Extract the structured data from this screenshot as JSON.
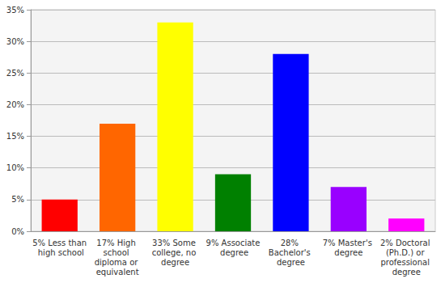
{
  "chart_data": {
    "type": "bar",
    "categories": [
      "5% Less than high school",
      "17% High school diploma or equivalent",
      "33% Some college, no degree",
      "9% Associate degree",
      "28% Bachelor's degree",
      "7% Master's degree",
      "2% Doctoral (Ph.D.) or professional degree"
    ],
    "values": [
      5,
      17,
      33,
      9,
      28,
      7,
      2
    ],
    "colors": [
      "#ff0000",
      "#ff6600",
      "#ffff00",
      "#008000",
      "#0000ff",
      "#9900ff",
      "#ff00ff"
    ],
    "ylim": [
      0,
      35
    ],
    "yticks": [
      {
        "value": 0,
        "label": "0%"
      },
      {
        "value": 5,
        "label": "5%"
      },
      {
        "value": 10,
        "label": "10%"
      },
      {
        "value": 15,
        "label": "15%"
      },
      {
        "value": 20,
        "label": "20%"
      },
      {
        "value": 25,
        "label": "25%"
      },
      {
        "value": 30,
        "label": "30%"
      },
      {
        "value": 35,
        "label": "35%"
      }
    ],
    "grid": true
  }
}
